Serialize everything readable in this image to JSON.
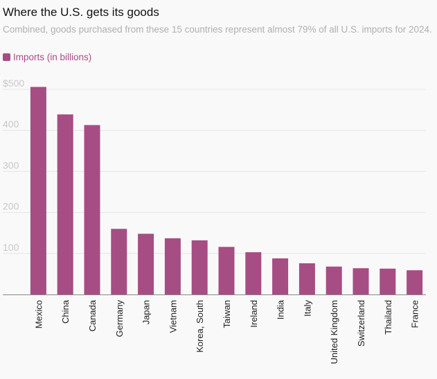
{
  "header": {
    "title": "Where the U.S. gets its goods",
    "subtitle": "Combined, goods purchased from these 15 countries represent almost 79% of all U.S. imports for 2024."
  },
  "colors": {
    "bar": "#a64d84",
    "legend_text": "#a64d84",
    "grid": "#e6e6e6",
    "axis": "#888888",
    "tick_text": "#c8c8c8",
    "category_text": "#222222"
  },
  "chart_data": {
    "type": "bar",
    "title": "Where the U.S. gets its goods",
    "subtitle": "Combined, goods purchased from these 15 countries represent almost 79% of all U.S. imports for 2024.",
    "legend": [
      {
        "name": "Imports (in billions)",
        "color": "#a64d84"
      }
    ],
    "categories": [
      "Mexico",
      "China",
      "Canada",
      "Germany",
      "Japan",
      "Vietnam",
      "Korea, South",
      "Taiwan",
      "Ireland",
      "India",
      "Italy",
      "United Kingdom",
      "Switzerland",
      "Thailand",
      "France"
    ],
    "values": [
      506,
      439,
      413,
      160,
      148,
      137,
      132,
      116,
      103,
      88,
      76,
      68,
      64,
      63,
      59
    ],
    "y_ticks": [
      {
        "value": 500,
        "label": "$500"
      },
      {
        "value": 400,
        "label": "400"
      },
      {
        "value": 300,
        "label": "300"
      },
      {
        "value": 200,
        "label": "200"
      },
      {
        "value": 100,
        "label": "100"
      }
    ],
    "ylim": [
      0,
      500
    ],
    "xlabel": "",
    "ylabel": ""
  }
}
